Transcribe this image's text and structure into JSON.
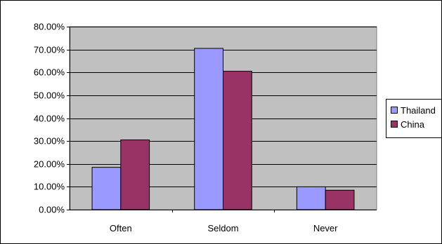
{
  "chart_data": {
    "type": "bar",
    "categories": [
      "Often",
      "Seldom",
      "Never"
    ],
    "series": [
      {
        "name": "Thailand",
        "values": [
          0.185,
          0.705,
          0.1
        ],
        "color": "#9999FF"
      },
      {
        "name": "China",
        "values": [
          0.305,
          0.605,
          0.085
        ],
        "color": "#993366"
      }
    ],
    "ylim": [
      0,
      0.8
    ],
    "yticks": [
      "0.00%",
      "10.00%",
      "20.00%",
      "30.00%",
      "40.00%",
      "50.00%",
      "60.00%",
      "70.00%",
      "80.00%"
    ],
    "grid": true,
    "plot_background": "#C0C0C0",
    "legend_position": "right"
  }
}
